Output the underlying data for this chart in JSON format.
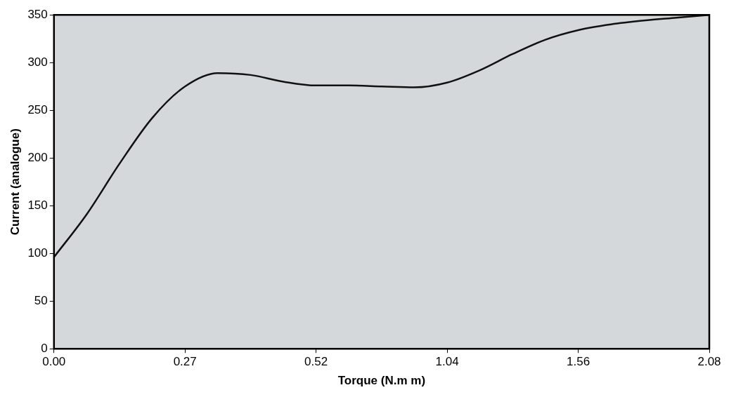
{
  "chart_data": {
    "type": "line",
    "xlabel": "Torque (N.m m)",
    "ylabel": "Current (analogue)",
    "categories": [
      "0.00",
      null,
      null,
      null,
      "0.27",
      null,
      null,
      null,
      "0.52",
      null,
      null,
      null,
      "1.04",
      null,
      null,
      null,
      "1.56",
      null,
      null,
      null,
      "2.08"
    ],
    "values": [
      96,
      141,
      194,
      242,
      275,
      289,
      287,
      280,
      276,
      276,
      275,
      274,
      279,
      292,
      309,
      324,
      334,
      340,
      344,
      347,
      350
    ],
    "color": "#111111",
    "ylim": [
      0,
      350
    ],
    "yticks": [
      0,
      50,
      100,
      150,
      200,
      250,
      300,
      350
    ],
    "grid": false
  }
}
